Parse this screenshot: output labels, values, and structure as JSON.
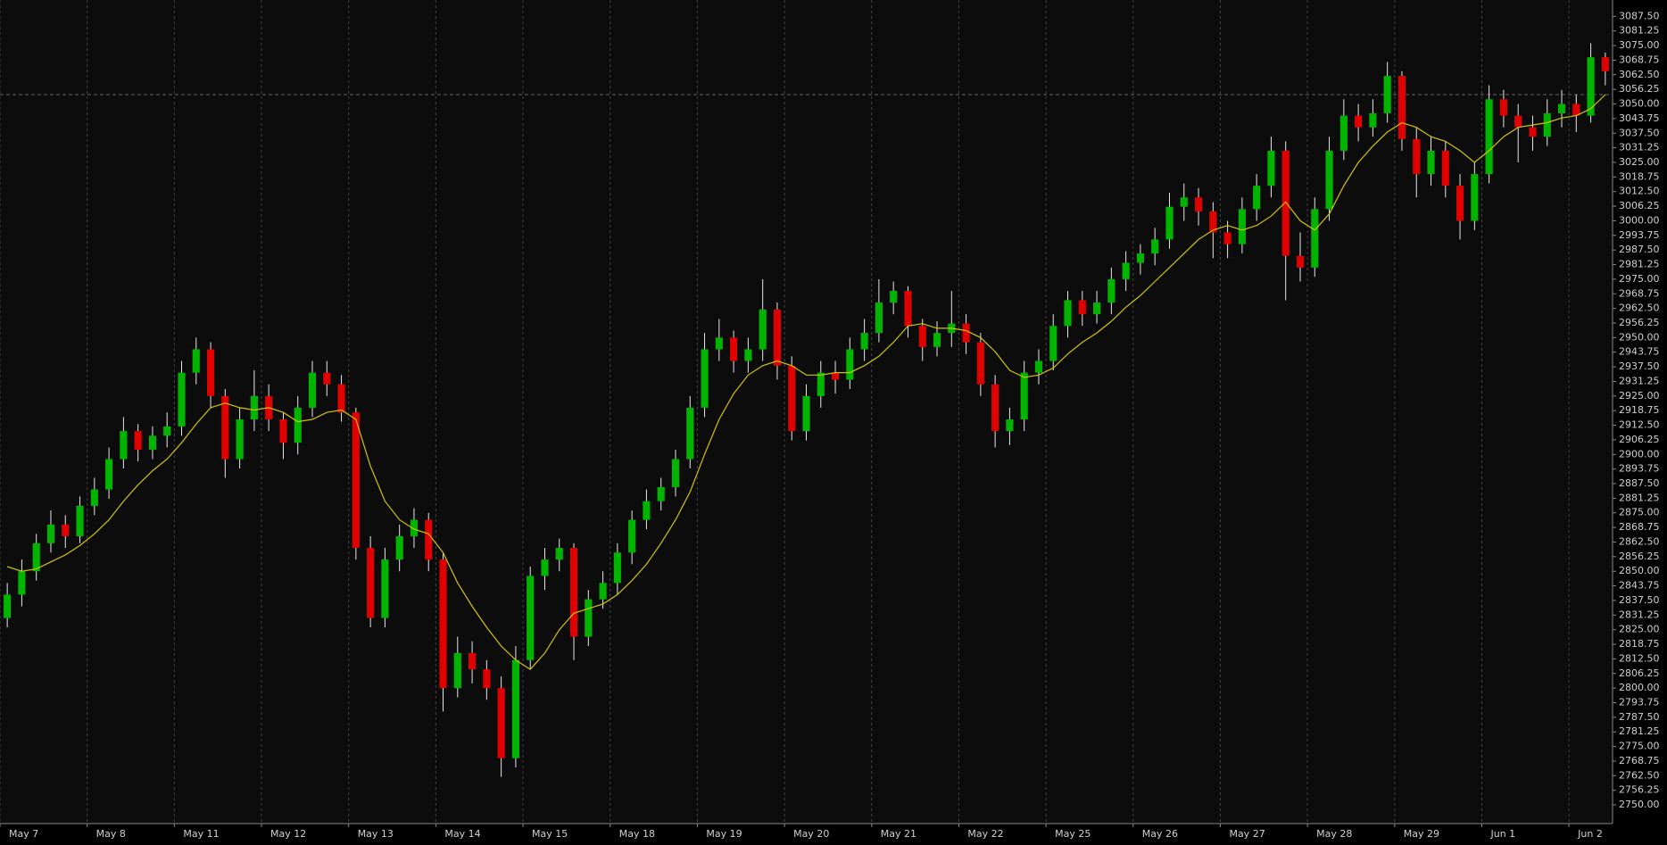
{
  "chart_data": {
    "type": "candlestick",
    "xlim": [
      0,
      111
    ],
    "ylim": [
      2742,
      3094.5
    ],
    "xticks": [
      {
        "value": 0,
        "label": "May 7"
      },
      {
        "value": 6,
        "label": "May 8"
      },
      {
        "value": 12,
        "label": "May 11"
      },
      {
        "value": 18,
        "label": "May 12"
      },
      {
        "value": 24,
        "label": "May 13"
      },
      {
        "value": 30,
        "label": "May 14"
      },
      {
        "value": 36,
        "label": "May 15"
      },
      {
        "value": 42,
        "label": "May 18"
      },
      {
        "value": 48,
        "label": "May 19"
      },
      {
        "value": 54,
        "label": "May 20"
      },
      {
        "value": 60,
        "label": "May 21"
      },
      {
        "value": 66,
        "label": "May 22"
      },
      {
        "value": 72,
        "label": "May 25"
      },
      {
        "value": 78,
        "label": "May 26"
      },
      {
        "value": 84,
        "label": "May 27"
      },
      {
        "value": 90,
        "label": "May 28"
      },
      {
        "value": 96,
        "label": "May 29"
      },
      {
        "value": 102,
        "label": "Jun 1"
      },
      {
        "value": 108,
        "label": "Jun 2"
      }
    ],
    "yticks": [
      {
        "value": 2750,
        "label": "2750.00"
      },
      {
        "value": 2756.25,
        "label": "2756.25"
      },
      {
        "value": 2762.5,
        "label": "2762.50"
      },
      {
        "value": 2768.75,
        "label": "2768.75"
      },
      {
        "value": 2775,
        "label": "2775.00"
      },
      {
        "value": 2781.25,
        "label": "2781.25"
      },
      {
        "value": 2787.5,
        "label": "2787.50"
      },
      {
        "value": 2793.75,
        "label": "2793.75"
      },
      {
        "value": 2800,
        "label": "2800.00"
      },
      {
        "value": 2806.25,
        "label": "2806.25"
      },
      {
        "value": 2812.5,
        "label": "2812.50"
      },
      {
        "value": 2818.75,
        "label": "2818.75"
      },
      {
        "value": 2825,
        "label": "2825.00"
      },
      {
        "value": 2831.25,
        "label": "2831.25"
      },
      {
        "value": 2837.5,
        "label": "2837.50"
      },
      {
        "value": 2843.75,
        "label": "2843.75"
      },
      {
        "value": 2850,
        "label": "2850.00"
      },
      {
        "value": 2856.25,
        "label": "2856.25"
      },
      {
        "value": 2862.5,
        "label": "2862.50"
      },
      {
        "value": 2868.75,
        "label": "2868.75"
      },
      {
        "value": 2875,
        "label": "2875.00"
      },
      {
        "value": 2881.25,
        "label": "2881.25"
      },
      {
        "value": 2887.5,
        "label": "2887.50"
      },
      {
        "value": 2893.75,
        "label": "2893.75"
      },
      {
        "value": 2900,
        "label": "2900.00"
      },
      {
        "value": 2906.25,
        "label": "2906.25"
      },
      {
        "value": 2912.5,
        "label": "2912.50"
      },
      {
        "value": 2918.75,
        "label": "2918.75"
      },
      {
        "value": 2925,
        "label": "2925.00"
      },
      {
        "value": 2931.25,
        "label": "2931.25"
      },
      {
        "value": 2937.5,
        "label": "2937.50"
      },
      {
        "value": 2943.75,
        "label": "2943.75"
      },
      {
        "value": 2950,
        "label": "2950.00"
      },
      {
        "value": 2956.25,
        "label": "2956.25"
      },
      {
        "value": 2962.5,
        "label": "2962.50"
      },
      {
        "value": 2968.75,
        "label": "2968.75"
      },
      {
        "value": 2975,
        "label": "2975.00"
      },
      {
        "value": 2981.25,
        "label": "2981.25"
      },
      {
        "value": 2987.5,
        "label": "2987.50"
      },
      {
        "value": 2993.75,
        "label": "2993.75"
      },
      {
        "value": 3000,
        "label": "3000.00"
      },
      {
        "value": 3006.25,
        "label": "3006.25"
      },
      {
        "value": 3012.5,
        "label": "3012.50"
      },
      {
        "value": 3018.75,
        "label": "3018.75"
      },
      {
        "value": 3025,
        "label": "3025.00"
      },
      {
        "value": 3031.25,
        "label": "3031.25"
      },
      {
        "value": 3037.5,
        "label": "3037.50"
      },
      {
        "value": 3043.75,
        "label": "3043.75"
      },
      {
        "value": 3050,
        "label": "3050.00"
      },
      {
        "value": 3056.25,
        "label": "3056.25"
      },
      {
        "value": 3062.5,
        "label": "3062.50"
      },
      {
        "value": 3068.75,
        "label": "3068.75"
      },
      {
        "value": 3075,
        "label": "3075.00"
      },
      {
        "value": 3081.25,
        "label": "3081.25"
      },
      {
        "value": 3087.5,
        "label": "3087.50"
      }
    ],
    "up_color": "#00b400",
    "down_color": "#e00000",
    "wick_color": "#e8e8e8",
    "ma_color": "#d4c400",
    "grid": true,
    "price_line": 3054,
    "open": [
      2830,
      2840,
      2850,
      2862,
      2870,
      2865,
      2878,
      2885,
      2898,
      2910,
      2902,
      2908,
      2912,
      2935,
      2945,
      2925,
      2898,
      2915,
      2925,
      2915,
      2905,
      2920,
      2935,
      2930,
      2918,
      2860,
      2830,
      2855,
      2865,
      2872,
      2855,
      2800,
      2815,
      2808,
      2800,
      2770,
      2812,
      2848,
      2855,
      2860,
      2822,
      2838,
      2845,
      2858,
      2872,
      2880,
      2886,
      2898,
      2920,
      2945,
      2950,
      2940,
      2945,
      2962,
      2938,
      2910,
      2925,
      2935,
      2932,
      2945,
      2952,
      2965,
      2970,
      2955,
      2946,
      2952,
      2956,
      2948,
      2930,
      2910,
      2915,
      2935,
      2940,
      2955,
      2966,
      2960,
      2965,
      2975,
      2982,
      2986,
      2992,
      3006,
      3010,
      3004,
      2995,
      2990,
      3005,
      3015,
      3030,
      2985,
      2980,
      3005,
      3030,
      3045,
      3040,
      3046,
      3062,
      3035,
      3020,
      3030,
      3015,
      3000,
      3020,
      3052,
      3045,
      3040,
      3036,
      3046,
      3050,
      3045,
      3070
    ],
    "high": [
      2845,
      2855,
      2866,
      2876,
      2874,
      2882,
      2890,
      2903,
      2916,
      2913,
      2912,
      2918,
      2940,
      2950,
      2948,
      2928,
      2920,
      2936,
      2930,
      2918,
      2925,
      2940,
      2940,
      2934,
      2920,
      2865,
      2860,
      2870,
      2877,
      2875,
      2858,
      2822,
      2820,
      2812,
      2805,
      2818,
      2852,
      2860,
      2864,
      2862,
      2842,
      2850,
      2862,
      2876,
      2885,
      2890,
      2902,
      2925,
      2952,
      2958,
      2953,
      2950,
      2975,
      2965,
      2942,
      2930,
      2940,
      2940,
      2950,
      2958,
      2975,
      2974,
      2972,
      2958,
      2957,
      2970,
      2960,
      2952,
      2934,
      2920,
      2940,
      2945,
      2960,
      2970,
      2970,
      2970,
      2980,
      2987,
      2990,
      2997,
      3012,
      3016,
      3014,
      3008,
      3000,
      3010,
      3020,
      3036,
      3034,
      2995,
      3010,
      3036,
      3052,
      3050,
      3052,
      3068,
      3064,
      3040,
      3036,
      3034,
      3020,
      3025,
      3058,
      3056,
      3050,
      3045,
      3052,
      3056,
      3054,
      3076,
      3072
    ],
    "low": [
      2826,
      2835,
      2846,
      2858,
      2860,
      2862,
      2874,
      2881,
      2894,
      2897,
      2898,
      2903,
      2908,
      2930,
      2920,
      2890,
      2894,
      2910,
      2910,
      2898,
      2900,
      2916,
      2925,
      2914,
      2855,
      2826,
      2826,
      2850,
      2860,
      2850,
      2790,
      2796,
      2802,
      2795,
      2762,
      2766,
      2808,
      2842,
      2850,
      2812,
      2818,
      2834,
      2840,
      2853,
      2868,
      2876,
      2882,
      2894,
      2916,
      2940,
      2935,
      2935,
      2940,
      2932,
      2906,
      2906,
      2920,
      2926,
      2928,
      2940,
      2948,
      2960,
      2950,
      2940,
      2942,
      2946,
      2943,
      2925,
      2903,
      2904,
      2910,
      2930,
      2936,
      2950,
      2955,
      2956,
      2960,
      2970,
      2977,
      2981,
      2988,
      3000,
      2998,
      2984,
      2984,
      2986,
      3000,
      3010,
      2966,
      2974,
      2976,
      3000,
      3026,
      3034,
      3036,
      3042,
      3030,
      3010,
      3015,
      3010,
      2992,
      2996,
      3016,
      3040,
      3025,
      3030,
      3032,
      3040,
      3038,
      3042,
      3058
    ],
    "close": [
      2840,
      2850,
      2862,
      2870,
      2865,
      2878,
      2885,
      2898,
      2910,
      2902,
      2908,
      2912,
      2935,
      2945,
      2925,
      2898,
      2915,
      2925,
      2915,
      2905,
      2920,
      2935,
      2930,
      2918,
      2860,
      2830,
      2855,
      2865,
      2872,
      2855,
      2800,
      2815,
      2808,
      2800,
      2770,
      2812,
      2848,
      2855,
      2860,
      2822,
      2838,
      2845,
      2858,
      2872,
      2880,
      2886,
      2898,
      2920,
      2945,
      2950,
      2940,
      2945,
      2962,
      2938,
      2910,
      2925,
      2935,
      2932,
      2945,
      2952,
      2965,
      2970,
      2955,
      2946,
      2952,
      2956,
      2948,
      2930,
      2910,
      2915,
      2935,
      2940,
      2955,
      2966,
      2960,
      2965,
      2975,
      2982,
      2986,
      2992,
      3006,
      3010,
      3004,
      2995,
      2990,
      3005,
      3015,
      3030,
      2985,
      2980,
      3005,
      3030,
      3045,
      3040,
      3046,
      3062,
      3035,
      3020,
      3030,
      3015,
      3000,
      3020,
      3052,
      3045,
      3040,
      3036,
      3046,
      3050,
      3045,
      3070,
      3064
    ],
    "ma": [
      2852,
      2850,
      2851,
      2854,
      2857,
      2861,
      2866,
      2872,
      2880,
      2887,
      2893,
      2898,
      2905,
      2913,
      2920,
      2922,
      2920,
      2919,
      2920,
      2918,
      2914,
      2915,
      2918,
      2919,
      2915,
      2895,
      2880,
      2872,
      2868,
      2866,
      2858,
      2845,
      2835,
      2826,
      2818,
      2812,
      2808,
      2815,
      2825,
      2832,
      2834,
      2836,
      2840,
      2846,
      2853,
      2862,
      2872,
      2884,
      2900,
      2915,
      2926,
      2934,
      2938,
      2940,
      2938,
      2934,
      2934,
      2935,
      2935,
      2938,
      2942,
      2948,
      2955,
      2956,
      2954,
      2954,
      2953,
      2950,
      2944,
      2936,
      2933,
      2934,
      2937,
      2943,
      2948,
      2952,
      2957,
      2963,
      2968,
      2974,
      2980,
      2986,
      2992,
      2996,
      2998,
      2996,
      2998,
      3002,
      3008,
      3000,
      2996,
      3003,
      3015,
      3025,
      3032,
      3038,
      3042,
      3040,
      3036,
      3034,
      3030,
      3025,
      3030,
      3036,
      3040,
      3041,
      3042,
      3044,
      3045,
      3048,
      3054
    ]
  }
}
